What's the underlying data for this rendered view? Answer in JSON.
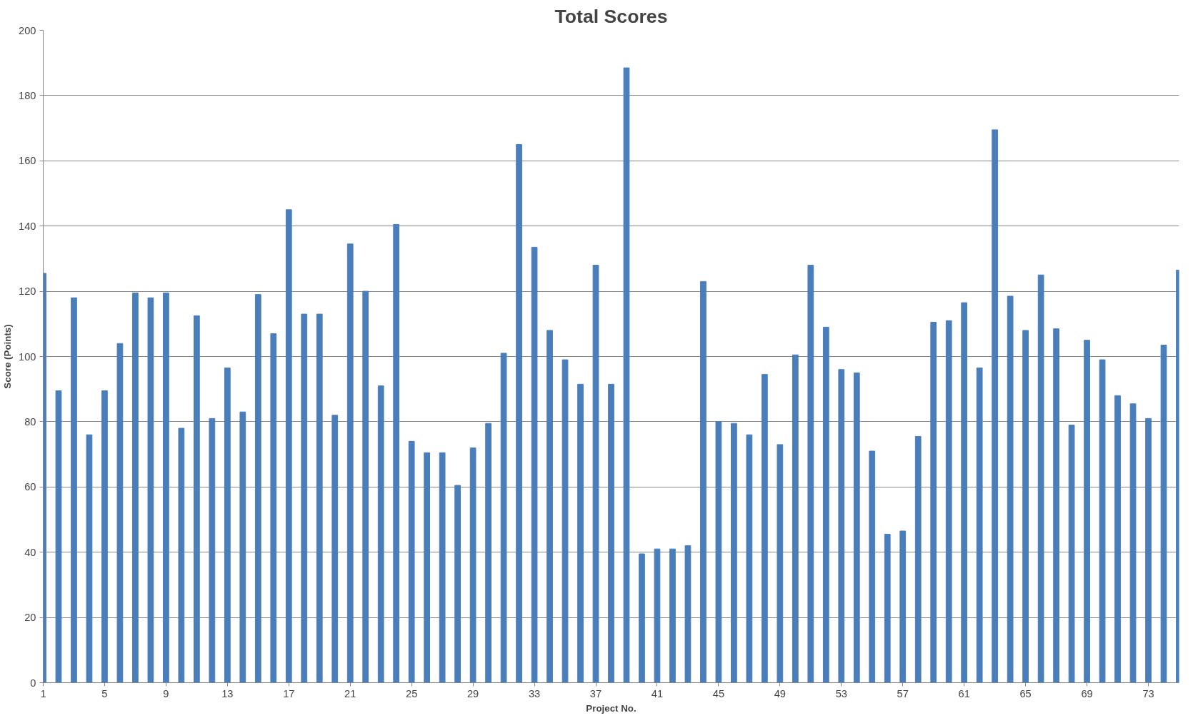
{
  "chart_data": {
    "type": "bar",
    "title": "Total Scores",
    "xlabel": "Project No.",
    "ylabel": "Score (Points)",
    "categories": [
      "1",
      null,
      null,
      null,
      "5",
      null,
      null,
      null,
      "9",
      null,
      null,
      null,
      "13",
      null,
      null,
      null,
      "17",
      null,
      null,
      null,
      "21",
      null,
      null,
      null,
      "25",
      null,
      null,
      null,
      "29",
      null,
      null,
      null,
      "33",
      null,
      null,
      null,
      "37",
      null,
      null,
      null,
      "41",
      null,
      null,
      null,
      "45",
      null,
      null,
      null,
      "49",
      null,
      null,
      null,
      "53",
      null,
      null,
      null,
      "57",
      null,
      null,
      null,
      "61",
      null,
      null,
      null,
      "65",
      null,
      null,
      null,
      "69",
      null,
      null,
      null,
      "73",
      null,
      null
    ],
    "values": [
      125.5,
      89.5,
      118,
      76,
      89.5,
      104,
      119.5,
      118,
      119.5,
      78,
      112.5,
      81,
      96.5,
      83,
      119,
      107,
      145,
      113,
      113,
      82,
      134.5,
      120,
      91,
      140.5,
      74,
      70.5,
      70.5,
      60.5,
      72,
      79.5,
      101,
      165,
      133.5,
      108,
      99,
      91.5,
      128,
      91.5,
      188.5,
      39.5,
      41,
      41,
      42,
      123,
      80,
      79.5,
      76,
      94.5,
      73,
      100.5,
      128,
      109,
      96,
      95,
      71,
      45.5,
      46.5,
      75.5,
      110.5,
      111,
      116.5,
      96.5,
      169.5,
      118.5,
      108,
      125,
      108.5,
      79,
      105,
      99,
      88,
      85.5,
      81,
      103.5,
      126.5
    ],
    "color": "#4a7ebb",
    "ylim": [
      0,
      200
    ],
    "yticks": [
      0,
      20,
      40,
      60,
      80,
      100,
      120,
      140,
      160,
      180,
      200
    ],
    "grid": "y"
  }
}
